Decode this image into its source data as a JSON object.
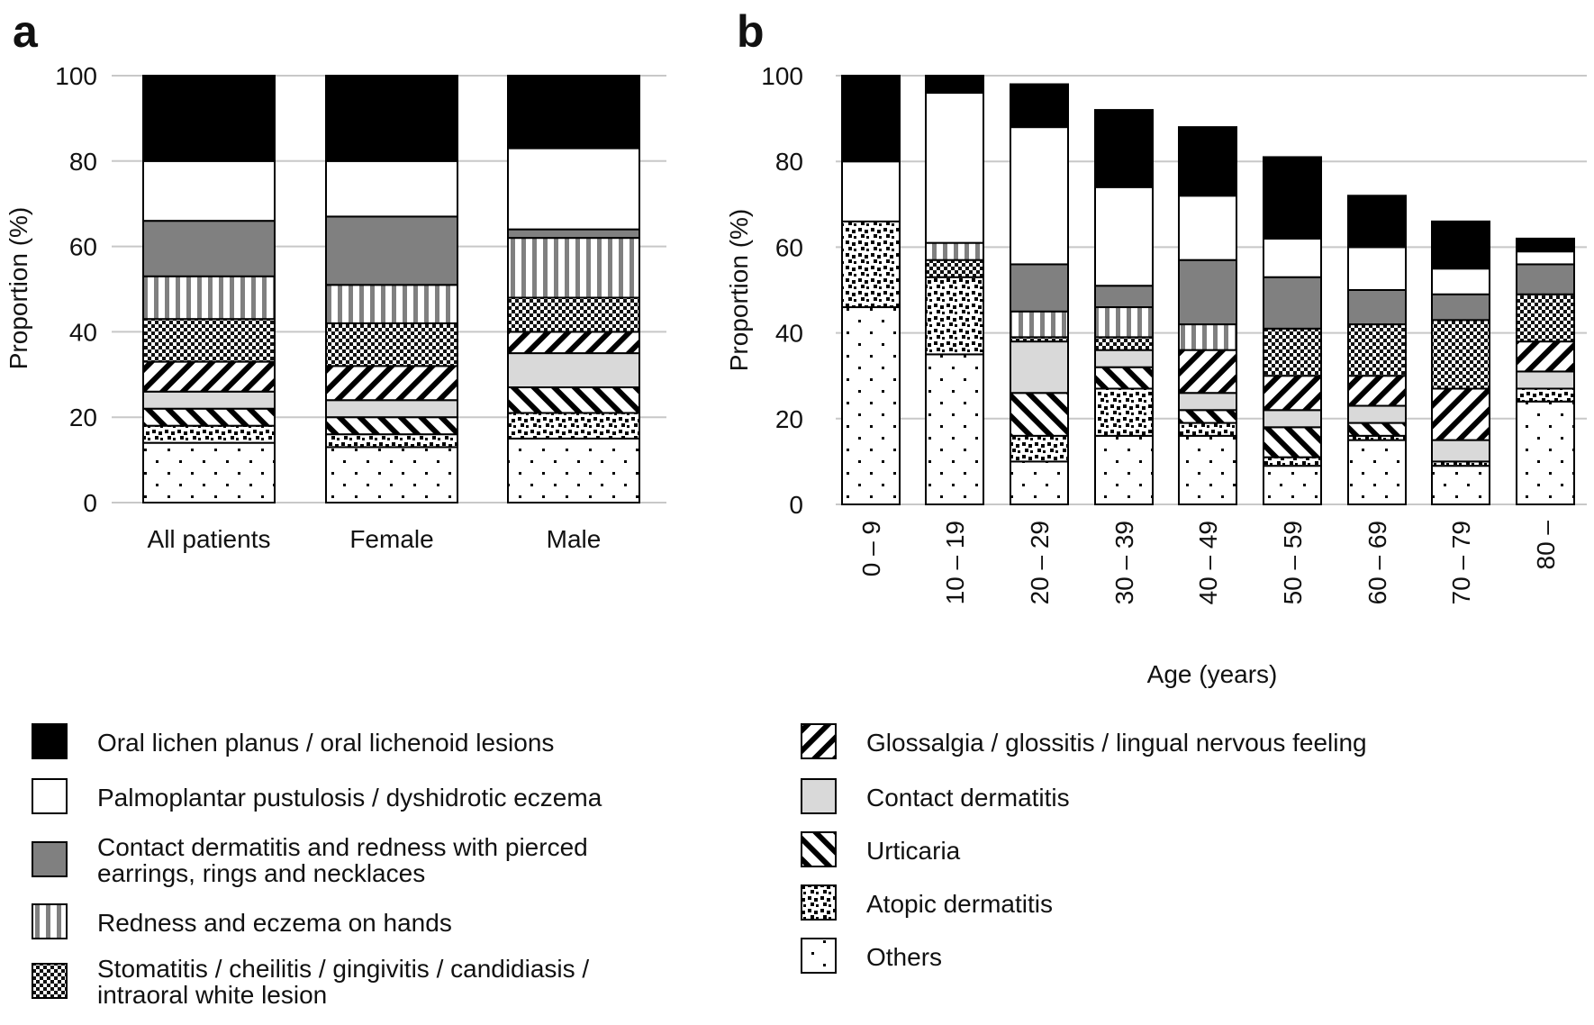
{
  "colors": {
    "grid": "#c8c8c8",
    "outline": "#000000",
    "dark_grey": "#808080",
    "light_grey": "#d9d9d9"
  },
  "legend": [
    {
      "key": "olp",
      "label": "Oral lichen planus / oral lichenoid lesions",
      "pattern": "black"
    },
    {
      "key": "ppp",
      "label": "Palmoplantar pustulosis / dyshidrotic eczema",
      "pattern": "white"
    },
    {
      "key": "pierce",
      "label": "Contact dermatitis and redness with pierced earrings, rings and necklaces",
      "pattern": "dark-grey"
    },
    {
      "key": "hands",
      "label": "Redness and eczema on hands",
      "pattern": "vertical-stripes"
    },
    {
      "key": "stoma",
      "label": "Stomatitis / cheilitis / gingivitis / candidiasis / intraoral white lesion",
      "pattern": "checker"
    },
    {
      "key": "gloss",
      "label": "Glossalgia / glossitis / lingual nervous feeling",
      "pattern": "diagonal-up"
    },
    {
      "key": "cd",
      "label": "Contact dermatitis",
      "pattern": "light-grey"
    },
    {
      "key": "urt",
      "label": "Urticaria",
      "pattern": "diagonal-down"
    },
    {
      "key": "ad",
      "label": "Atopic dermatitis",
      "pattern": "scattered-squares"
    },
    {
      "key": "oth",
      "label": "Others",
      "pattern": "sparse-dots"
    }
  ],
  "chart_data": [
    {
      "panel": "a",
      "type": "bar",
      "stacked": true,
      "xlabel": "",
      "ylabel": "Proportion (%)",
      "ylim": [
        0,
        100
      ],
      "yticks": [
        0,
        20,
        40,
        60,
        80,
        100
      ],
      "grid": "horizontal",
      "categories": [
        "All patients",
        "Female",
        "Male"
      ],
      "series": [
        {
          "name": "Others",
          "key": "oth",
          "values": [
            14,
            13,
            15
          ]
        },
        {
          "name": "Atopic dermatitis",
          "key": "ad",
          "values": [
            4,
            3,
            6
          ]
        },
        {
          "name": "Urticaria",
          "key": "urt",
          "values": [
            4,
            4,
            6
          ]
        },
        {
          "name": "Contact dermatitis",
          "key": "cd",
          "values": [
            4,
            4,
            8
          ]
        },
        {
          "name": "Glossalgia / glossitis / lingual nervous feeling",
          "key": "gloss",
          "values": [
            7,
            8,
            5
          ]
        },
        {
          "name": "Stomatitis / cheilitis / gingivitis / candidiasis / intraoral white lesion",
          "key": "stoma",
          "values": [
            10,
            10,
            8
          ]
        },
        {
          "name": "Redness and eczema on hands",
          "key": "hands",
          "values": [
            10,
            9,
            14
          ]
        },
        {
          "name": "Contact dermatitis and redness with pierced earrings, rings and necklaces",
          "key": "pierce",
          "values": [
            13,
            16,
            2
          ]
        },
        {
          "name": "Palmoplantar pustulosis / dyshidrotic eczema",
          "key": "ppp",
          "values": [
            14,
            13,
            19
          ]
        },
        {
          "name": "Oral lichen planus / oral lichenoid lesions",
          "key": "olp",
          "values": [
            20,
            20,
            17
          ]
        }
      ]
    },
    {
      "panel": "b",
      "type": "bar",
      "stacked": true,
      "xlabel": "Age (years)",
      "ylabel": "Proportion (%)",
      "ylim": [
        0,
        100
      ],
      "yticks": [
        0,
        20,
        40,
        60,
        80,
        100
      ],
      "grid": "horizontal",
      "categories": [
        "0 – 9",
        "10 – 19",
        "20 – 29",
        "30 – 39",
        "40 – 49",
        "50 – 59",
        "60 – 69",
        "70 – 79",
        "80 –"
      ],
      "series": [
        {
          "name": "Others",
          "key": "oth",
          "values": [
            46,
            35,
            10,
            16,
            16,
            9,
            15,
            9,
            24
          ]
        },
        {
          "name": "Atopic dermatitis",
          "key": "ad",
          "values": [
            20,
            18,
            6,
            11,
            3,
            2,
            1,
            1,
            3
          ]
        },
        {
          "name": "Urticaria",
          "key": "urt",
          "values": [
            0,
            0,
            10,
            5,
            3,
            7,
            3,
            0,
            0
          ]
        },
        {
          "name": "Contact dermatitis",
          "key": "cd",
          "values": [
            0,
            0,
            12,
            4,
            4,
            4,
            4,
            5,
            4
          ]
        },
        {
          "name": "Glossalgia / glossitis / lingual nervous feeling",
          "key": "gloss",
          "values": [
            0,
            0,
            0,
            0,
            10,
            8,
            7,
            12,
            7
          ]
        },
        {
          "name": "Stomatitis / cheilitis / gingivitis / candidiasis / intraoral white lesion",
          "key": "stoma",
          "values": [
            0,
            4,
            1,
            3,
            0,
            11,
            12,
            16,
            11
          ]
        },
        {
          "name": "Redness and eczema on hands",
          "key": "hands",
          "values": [
            0,
            4,
            6,
            7,
            6,
            0,
            0,
            0,
            0
          ]
        },
        {
          "name": "Contact dermatitis and redness with pierced earrings, rings and necklaces",
          "key": "pierce",
          "values": [
            0,
            0,
            11,
            5,
            15,
            12,
            8,
            6,
            7
          ]
        },
        {
          "name": "Palmoplantar pustulosis / dyshidrotic eczema",
          "key": "ppp",
          "values": [
            14,
            35,
            32,
            23,
            15,
            9,
            10,
            6,
            3
          ]
        },
        {
          "name": "Oral lichen planus / oral lichenoid lesions",
          "key": "olp",
          "values": [
            20,
            4,
            10,
            18,
            16,
            19,
            12,
            11,
            3
          ]
        }
      ]
    }
  ]
}
